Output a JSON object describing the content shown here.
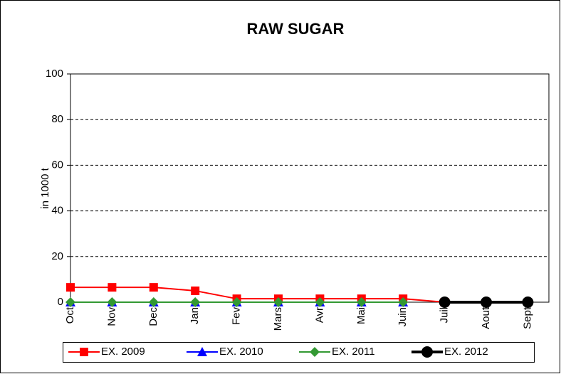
{
  "chart_data": {
    "type": "line",
    "title": "RAW SUGAR",
    "y_label": "in 1000 t",
    "categories": [
      "Oct",
      "Nov",
      "Dec",
      "Jan",
      "Fev",
      "Mars",
      "Avr",
      "Mai",
      "Juin",
      "Juil",
      "Aout",
      "Sept"
    ],
    "series": [
      {
        "name": "EX. 2009",
        "color": "#ff0000",
        "marker": "square",
        "values": [
          6.5,
          6.5,
          6.5,
          5,
          1.5,
          1.5,
          1.5,
          1.5,
          1.5,
          0,
          null,
          null
        ]
      },
      {
        "name": "EX. 2010",
        "color": "#0000ff",
        "marker": "triangle",
        "values": [
          0,
          0,
          0,
          0,
          0,
          0,
          0,
          0,
          0,
          null,
          null,
          null
        ]
      },
      {
        "name": "EX. 2011",
        "color": "#339933",
        "marker": "diamond",
        "values": [
          0,
          0,
          0,
          0,
          0,
          0,
          0,
          0,
          0,
          null,
          null,
          null
        ]
      },
      {
        "name": "EX. 2012",
        "color": "#000000",
        "marker": "circle",
        "values": [
          null,
          null,
          null,
          null,
          null,
          null,
          null,
          null,
          null,
          0,
          0,
          0
        ]
      }
    ],
    "ylim": [
      0,
      100
    ],
    "yticks": [
      0,
      20,
      40,
      60,
      80,
      100
    ],
    "grid": true,
    "legend": "bottom"
  }
}
